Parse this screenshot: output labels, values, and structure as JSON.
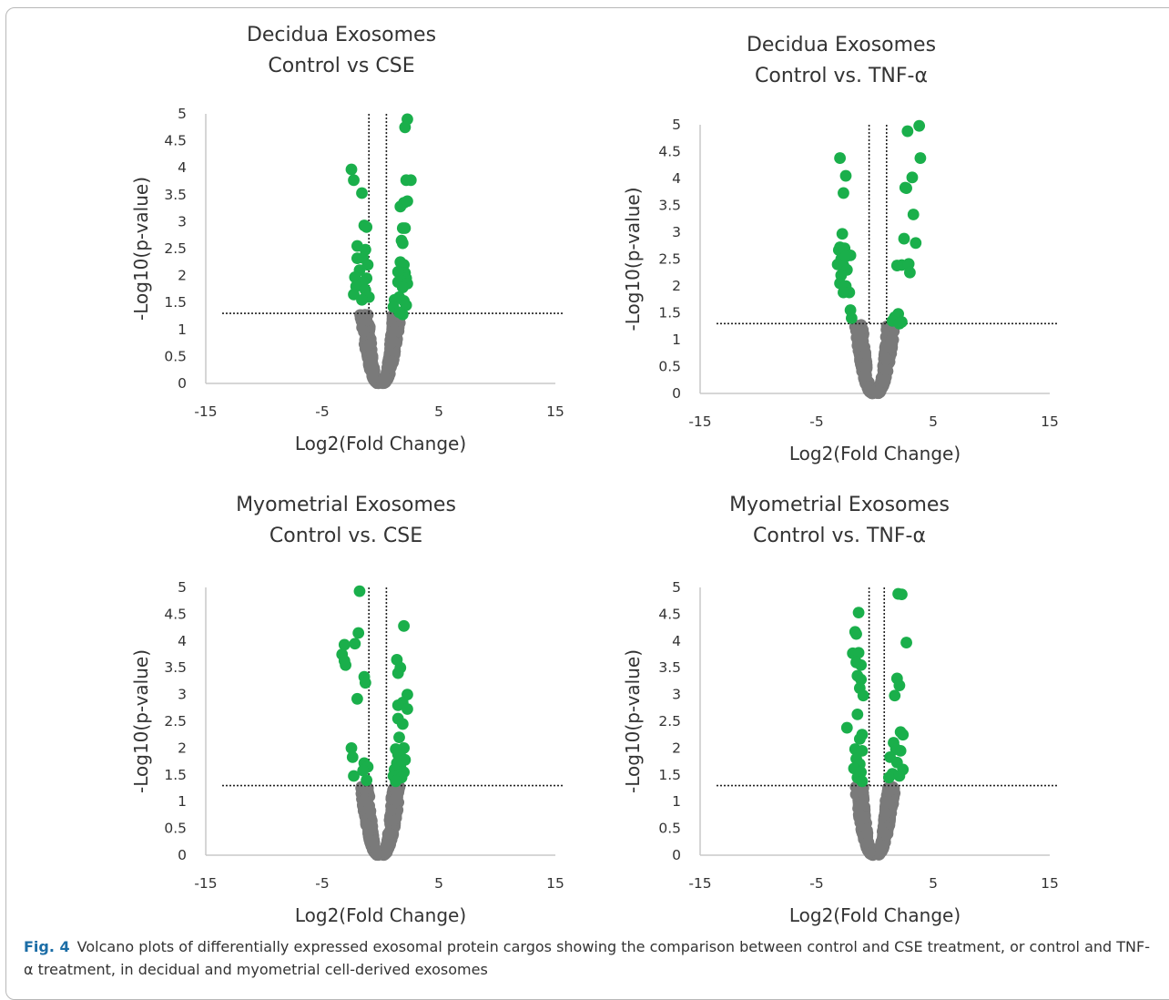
{
  "caption": {
    "label": "Fig. 4",
    "text": "Volcano plots of differentially expressed exosomal protein cargos showing the comparison between control and CSE treatment, or control and TNF-α treatment, in decidual and myometrial cell-derived exosomes"
  },
  "colors": {
    "significant": "#1aaf4b",
    "nonsignificant": "#7a7a7a",
    "axis": "#c8c8c8",
    "text": "#333333"
  },
  "chart_data": [
    {
      "type": "scatter",
      "title_lines": [
        "Decidua Exosomes",
        "Control vs CSE"
      ],
      "xlabel": "Log2(Fold Change)",
      "ylabel": "-Log10(p-value)",
      "xlim": [
        -15,
        15
      ],
      "ylim": [
        0,
        5
      ],
      "xticks": [
        "-15",
        "-5",
        "5",
        "15"
      ],
      "yticks": [
        "0",
        "0.5",
        "1",
        "1.5",
        "2",
        "2.5",
        "3",
        "3.5",
        "4",
        "4.5",
        "5"
      ],
      "thresholds": {
        "p": 1.3,
        "fc": [
          -1,
          0.5
        ]
      },
      "series": [
        {
          "points": [
            [
              -2.5,
              3.97
            ],
            [
              -2.3,
              3.77
            ],
            [
              -1.6,
              3.53
            ],
            [
              -1.4,
              2.93
            ],
            [
              -1.2,
              2.9
            ],
            [
              -2,
              2.55
            ],
            [
              -1.3,
              2.48
            ],
            [
              -2,
              2.32
            ],
            [
              -1.5,
              2.33
            ],
            [
              -1.8,
              2.1
            ],
            [
              -1.1,
              2.2
            ],
            [
              -2.2,
              1.97
            ],
            [
              -1.2,
              1.95
            ],
            [
              -1.5,
              1.88
            ],
            [
              -2.1,
              1.8
            ],
            [
              -1.3,
              1.73
            ],
            [
              -1,
              1.6
            ],
            [
              -2.3,
              1.65
            ],
            [
              -1.6,
              1.55
            ],
            [
              2.3,
              4.9
            ],
            [
              2.1,
              4.75
            ],
            [
              2.2,
              3.77
            ],
            [
              2.6,
              3.77
            ],
            [
              2,
              3.35
            ],
            [
              1.7,
              3.28
            ],
            [
              2.3,
              3.38
            ],
            [
              1.9,
              2.88
            ],
            [
              2.1,
              2.88
            ],
            [
              1.8,
              2.65
            ],
            [
              1.9,
              2.6
            ],
            [
              1.7,
              2.25
            ],
            [
              2,
              2.2
            ],
            [
              2.1,
              2.05
            ],
            [
              1.5,
              2.07
            ],
            [
              2.2,
              1.95
            ],
            [
              1.8,
              1.9
            ],
            [
              1.5,
              1.88
            ],
            [
              2.3,
              1.85
            ],
            [
              1.9,
              1.78
            ],
            [
              1.6,
              1.6
            ],
            [
              2,
              1.53
            ],
            [
              1.2,
              1.55
            ],
            [
              2.2,
              1.45
            ],
            [
              1.1,
              1.42
            ],
            [
              1.9,
              1.28
            ],
            [
              1.6,
              1.32
            ]
          ]
        }
      ]
    },
    {
      "type": "scatter",
      "title_lines": [
        "Decidua Exosomes",
        "Control vs. TNF-α"
      ],
      "xlabel": "Log2(Fold Change)",
      "ylabel": "-Log10(p-value)",
      "xlim": [
        -15,
        15
      ],
      "ylim": [
        0,
        5
      ],
      "xticks": [
        "-15",
        "-5",
        "5",
        "15"
      ],
      "yticks": [
        "0",
        "0.5",
        "1",
        "1.5",
        "2",
        "2.5",
        "3",
        "3.5",
        "4",
        "4.5",
        "5"
      ],
      "thresholds": {
        "p": 1.3,
        "fc": [
          -0.5,
          1
        ]
      },
      "series": [
        {
          "points": [
            [
              -3,
              4.38
            ],
            [
              -2.5,
              4.05
            ],
            [
              -2.7,
              3.73
            ],
            [
              -2.8,
              2.97
            ],
            [
              -3,
              2.72
            ],
            [
              -3.1,
              2.67
            ],
            [
              -2.6,
              2.7
            ],
            [
              -2.1,
              2.57
            ],
            [
              -2.9,
              2.5
            ],
            [
              -2.5,
              2.55
            ],
            [
              -3.2,
              2.4
            ],
            [
              -2.7,
              2.38
            ],
            [
              -2.4,
              2.3
            ],
            [
              -2.9,
              2.2
            ],
            [
              -3,
              2.05
            ],
            [
              -2.5,
              2.0
            ],
            [
              -2.2,
              1.88
            ],
            [
              -2.7,
              1.88
            ],
            [
              -2.1,
              1.55
            ],
            [
              -2,
              1.4
            ],
            [
              3.8,
              4.98
            ],
            [
              2.8,
              4.88
            ],
            [
              3.9,
              4.38
            ],
            [
              3.2,
              4.02
            ],
            [
              2.7,
              3.82
            ],
            [
              2.6,
              3.83
            ],
            [
              3.3,
              3.33
            ],
            [
              2.5,
              2.88
            ],
            [
              3.5,
              2.8
            ],
            [
              2.3,
              2.39
            ],
            [
              1.9,
              2.38
            ],
            [
              2.9,
              2.41
            ],
            [
              3,
              2.25
            ],
            [
              2,
              1.48
            ],
            [
              1.7,
              1.42
            ],
            [
              2.3,
              1.33
            ],
            [
              1.5,
              1.35
            ],
            [
              2.1,
              1.3
            ]
          ]
        }
      ]
    },
    {
      "type": "scatter",
      "title_lines": [
        "Myometrial Exosomes",
        "Control vs. CSE"
      ],
      "xlabel": "Log2(Fold Change)",
      "ylabel": "-Log10(p-value)",
      "xlim": [
        -15,
        15
      ],
      "ylim": [
        0,
        5
      ],
      "xticks": [
        "-15",
        "-5",
        "5",
        "15"
      ],
      "yticks": [
        "0",
        "0.5",
        "1",
        "1.5",
        "2",
        "2.5",
        "3",
        "3.5",
        "4",
        "4.5",
        "5"
      ],
      "thresholds": {
        "p": 1.3,
        "fc": [
          -1,
          0.5
        ]
      },
      "series": [
        {
          "points": [
            [
              -1.8,
              4.93
            ],
            [
              -1.9,
              4.15
            ],
            [
              -3.1,
              3.93
            ],
            [
              -2.2,
              3.95
            ],
            [
              -3.3,
              3.75
            ],
            [
              -3.1,
              3.63
            ],
            [
              -3,
              3.55
            ],
            [
              -1.4,
              3.33
            ],
            [
              -1.3,
              3.22
            ],
            [
              -2,
              2.92
            ],
            [
              -2.5,
              2.0
            ],
            [
              -2.4,
              1.83
            ],
            [
              -1.4,
              1.72
            ],
            [
              -1.1,
              1.65
            ],
            [
              -1.5,
              1.58
            ],
            [
              -2.3,
              1.48
            ],
            [
              -1.2,
              1.4
            ],
            [
              2,
              4.28
            ],
            [
              1.4,
              3.65
            ],
            [
              1.7,
              3.5
            ],
            [
              1.5,
              3.4
            ],
            [
              2.3,
              3.0
            ],
            [
              1.9,
              2.85
            ],
            [
              1.5,
              2.8
            ],
            [
              2.3,
              2.73
            ],
            [
              1.5,
              2.55
            ],
            [
              1.9,
              2.45
            ],
            [
              1.6,
              2.2
            ],
            [
              2,
              2.0
            ],
            [
              1.3,
              1.98
            ],
            [
              1.5,
              1.88
            ],
            [
              1.8,
              1.82
            ],
            [
              2.1,
              1.78
            ],
            [
              1.4,
              1.72
            ],
            [
              1.7,
              1.65
            ],
            [
              1.2,
              1.6
            ],
            [
              2,
              1.55
            ],
            [
              1.5,
              1.5
            ],
            [
              1.1,
              1.48
            ],
            [
              1.8,
              1.45
            ],
            [
              1.3,
              1.38
            ]
          ]
        }
      ]
    },
    {
      "type": "scatter",
      "title_lines": [
        "Myometrial Exosomes",
        "Control vs. TNF-α"
      ],
      "xlabel": "Log2(Fold Change)",
      "ylabel": "-Log10(p-value)",
      "xlim": [
        -15,
        15
      ],
      "ylim": [
        0,
        5
      ],
      "xticks": [
        "-15",
        "-5",
        "5",
        "15"
      ],
      "yticks": [
        "0",
        "0.5",
        "1",
        "1.5",
        "2",
        "2.5",
        "3",
        "3.5",
        "4",
        "4.5",
        "5"
      ],
      "thresholds": {
        "p": 1.3,
        "fc": [
          -0.5,
          0.8
        ]
      },
      "series": [
        {
          "points": [
            [
              -1.4,
              4.53
            ],
            [
              -1.7,
              4.17
            ],
            [
              -1.6,
              4.13
            ],
            [
              -1.9,
              3.77
            ],
            [
              -1.4,
              3.78
            ],
            [
              -1.6,
              3.6
            ],
            [
              -1.2,
              3.55
            ],
            [
              -1.5,
              3.35
            ],
            [
              -1.2,
              3.28
            ],
            [
              -1.3,
              3.12
            ],
            [
              -1,
              2.98
            ],
            [
              -1.5,
              2.63
            ],
            [
              -2.4,
              2.38
            ],
            [
              -1.1,
              2.25
            ],
            [
              -1.3,
              2.17
            ],
            [
              -1.7,
              1.98
            ],
            [
              -1.1,
              1.95
            ],
            [
              -1.6,
              1.8
            ],
            [
              -1.3,
              1.7
            ],
            [
              -1.8,
              1.62
            ],
            [
              -1.2,
              1.55
            ],
            [
              -1.5,
              1.45
            ],
            [
              -1.1,
              1.38
            ],
            [
              2,
              4.88
            ],
            [
              2.3,
              4.87
            ],
            [
              2.7,
              3.97
            ],
            [
              1.9,
              3.3
            ],
            [
              2.1,
              3.17
            ],
            [
              1.7,
              2.98
            ],
            [
              2.2,
              2.3
            ],
            [
              2.4,
              2.25
            ],
            [
              1.6,
              2.1
            ],
            [
              1.8,
              1.98
            ],
            [
              2.2,
              1.95
            ],
            [
              1.3,
              1.83
            ],
            [
              1.9,
              1.73
            ],
            [
              2.4,
              1.6
            ],
            [
              1.5,
              1.52
            ],
            [
              2.1,
              1.48
            ],
            [
              1.2,
              1.45
            ]
          ]
        }
      ]
    }
  ]
}
